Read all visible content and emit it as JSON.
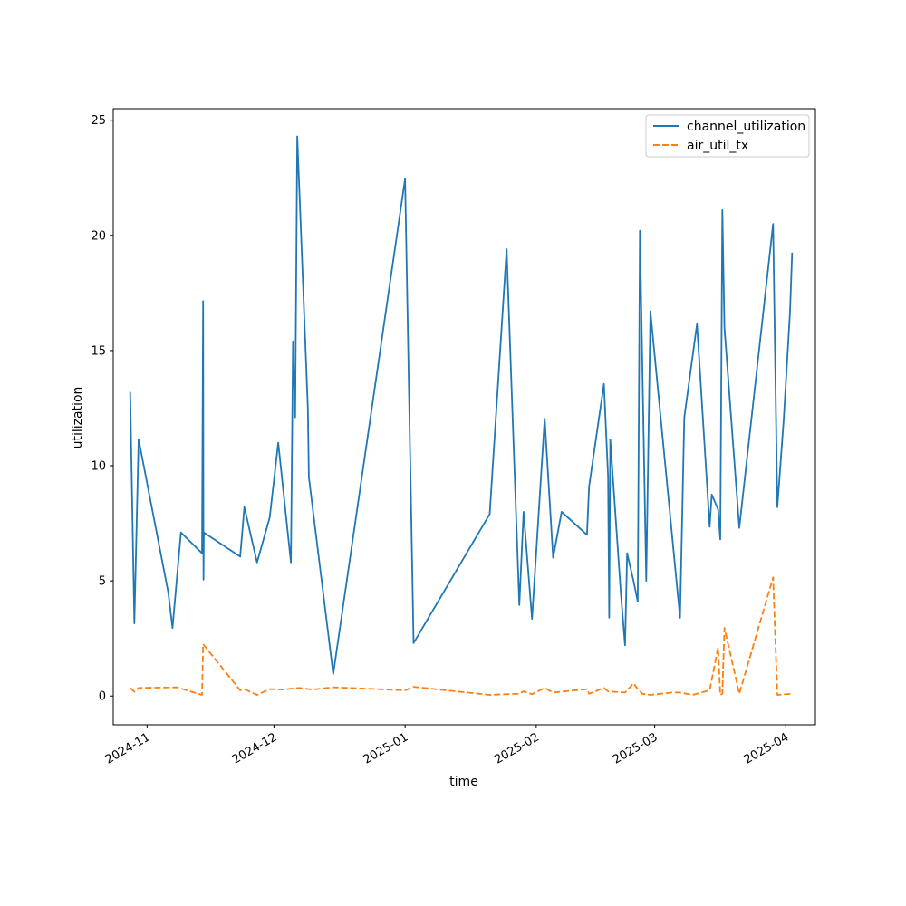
{
  "chart_data": {
    "type": "line",
    "xlabel": "time",
    "ylabel": "utilization",
    "xlim": [
      "2024-10-24",
      "2025-04-08"
    ],
    "ylim": [
      -1.25,
      25.5
    ],
    "y_ticks": [
      0,
      5,
      10,
      15,
      20,
      25
    ],
    "x_ticks": [
      "2024-11-01",
      "2024-12-01",
      "2025-01-01",
      "2025-02-01",
      "2025-03-01",
      "2025-04-01"
    ],
    "x_tick_labels": [
      "2024-11",
      "2024-12",
      "2025-01",
      "2025-02",
      "2025-03",
      "2025-04"
    ],
    "grid": false,
    "legend_position": "top-right",
    "series": [
      {
        "name": "channel_utilization",
        "color": "#1f77b4",
        "style": "solid",
        "points": [
          [
            "2024-10-28",
            13.2
          ],
          [
            "2024-10-29",
            3.15
          ],
          [
            "2024-10-30",
            11.15
          ],
          [
            "2024-11-06",
            4.5
          ],
          [
            "2024-11-07",
            2.95
          ],
          [
            "2024-11-09",
            7.1
          ],
          [
            "2024-11-14",
            6.2
          ],
          [
            "2024-11-14T06:00",
            17.15
          ],
          [
            "2024-11-14T08:00",
            5.05
          ],
          [
            "2024-11-14T10:00",
            7.1
          ],
          [
            "2024-11-23",
            6.05
          ],
          [
            "2024-11-24",
            8.2
          ],
          [
            "2024-11-27",
            5.8
          ],
          [
            "2024-11-30",
            7.75
          ],
          [
            "2024-12-02",
            11.0
          ],
          [
            "2024-12-05",
            5.8
          ],
          [
            "2024-12-05T12:00",
            15.4
          ],
          [
            "2024-12-06",
            12.1
          ],
          [
            "2024-12-06T12:00",
            24.3
          ],
          [
            "2024-12-09",
            12.5
          ],
          [
            "2024-12-09T06:00",
            9.5
          ],
          [
            "2024-12-15",
            0.95
          ],
          [
            "2025-01-01",
            22.45
          ],
          [
            "2025-01-03",
            2.3
          ],
          [
            "2025-01-21",
            7.9
          ],
          [
            "2025-01-25",
            19.4
          ],
          [
            "2025-01-28",
            3.95
          ],
          [
            "2025-01-29",
            8.0
          ],
          [
            "2025-01-31",
            3.35
          ],
          [
            "2025-02-03",
            12.05
          ],
          [
            "2025-02-05",
            6.0
          ],
          [
            "2025-02-07",
            8.0
          ],
          [
            "2025-02-13",
            7.0
          ],
          [
            "2025-02-13T12:00",
            9.1
          ],
          [
            "2025-02-17",
            13.55
          ],
          [
            "2025-02-18",
            9.5
          ],
          [
            "2025-02-18T06:00",
            3.4
          ],
          [
            "2025-02-18T12:00",
            11.15
          ],
          [
            "2025-02-21",
            4.5
          ],
          [
            "2025-02-22",
            2.2
          ],
          [
            "2025-02-22T12:00",
            6.2
          ],
          [
            "2025-02-24",
            5.0
          ],
          [
            "2025-02-25",
            4.1
          ],
          [
            "2025-02-25T12:00",
            20.2
          ],
          [
            "2025-02-27",
            5.0
          ],
          [
            "2025-02-28",
            16.7
          ],
          [
            "2025-03-07",
            3.4
          ],
          [
            "2025-03-08",
            12.1
          ],
          [
            "2025-03-11",
            16.15
          ],
          [
            "2025-03-14",
            7.35
          ],
          [
            "2025-03-14T12:00",
            8.75
          ],
          [
            "2025-03-16",
            8.1
          ],
          [
            "2025-03-16T12:00",
            6.8
          ],
          [
            "2025-03-17",
            21.1
          ],
          [
            "2025-03-17T12:00",
            16.0
          ],
          [
            "2025-03-21",
            7.3
          ],
          [
            "2025-03-29",
            20.5
          ],
          [
            "2025-03-30",
            8.2
          ],
          [
            "2025-03-31T12:00",
            12.0
          ],
          [
            "2025-04-02",
            16.7
          ],
          [
            "2025-04-02T12:00",
            19.25
          ]
        ]
      },
      {
        "name": "air_util_tx",
        "color": "#ff7f0e",
        "style": "dashed",
        "points": [
          [
            "2024-10-28",
            0.35
          ],
          [
            "2024-10-29",
            0.18
          ],
          [
            "2024-10-30",
            0.35
          ],
          [
            "2024-11-08",
            0.38
          ],
          [
            "2024-11-14",
            0.05
          ],
          [
            "2024-11-14T06:00",
            2.25
          ],
          [
            "2024-11-23",
            0.25
          ],
          [
            "2024-11-24",
            0.3
          ],
          [
            "2024-11-27",
            0.05
          ],
          [
            "2024-11-30",
            0.3
          ],
          [
            "2024-12-03",
            0.28
          ],
          [
            "2024-12-07",
            0.35
          ],
          [
            "2024-12-10",
            0.28
          ],
          [
            "2024-12-15",
            0.38
          ],
          [
            "2025-01-01",
            0.25
          ],
          [
            "2025-01-03",
            0.4
          ],
          [
            "2025-01-21",
            0.05
          ],
          [
            "2025-01-28",
            0.1
          ],
          [
            "2025-01-29",
            0.2
          ],
          [
            "2025-01-31",
            0.08
          ],
          [
            "2025-02-03",
            0.35
          ],
          [
            "2025-02-05",
            0.15
          ],
          [
            "2025-02-13",
            0.3
          ],
          [
            "2025-02-13T12:00",
            0.1
          ],
          [
            "2025-02-17",
            0.35
          ],
          [
            "2025-02-18",
            0.2
          ],
          [
            "2025-02-22",
            0.15
          ],
          [
            "2025-02-24",
            0.55
          ],
          [
            "2025-02-25",
            0.3
          ],
          [
            "2025-02-26",
            0.1
          ],
          [
            "2025-02-28",
            0.05
          ],
          [
            "2025-03-05",
            0.15
          ],
          [
            "2025-03-07",
            0.15
          ],
          [
            "2025-03-10",
            0.05
          ],
          [
            "2025-03-14",
            0.25
          ],
          [
            "2025-03-16",
            2.1
          ],
          [
            "2025-03-16T12:00",
            0.05
          ],
          [
            "2025-03-17",
            0.1
          ],
          [
            "2025-03-17T12:00",
            2.95
          ],
          [
            "2025-03-21",
            0.1
          ],
          [
            "2025-03-29",
            5.15
          ],
          [
            "2025-03-30",
            0.05
          ],
          [
            "2025-04-02T12:00",
            0.1
          ]
        ]
      }
    ]
  }
}
